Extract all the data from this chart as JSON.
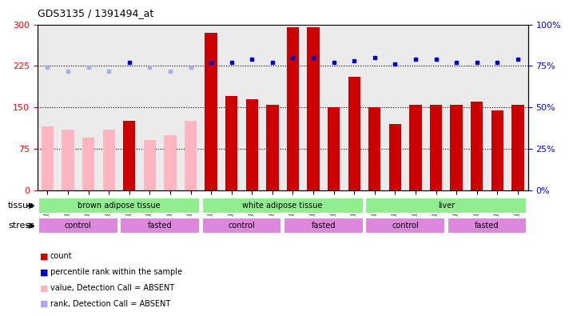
{
  "title": "GDS3135 / 1391494_at",
  "samples": [
    "GSM184414",
    "GSM184415",
    "GSM184416",
    "GSM184417",
    "GSM184418",
    "GSM184419",
    "GSM184420",
    "GSM184421",
    "GSM184422",
    "GSM184423",
    "GSM184424",
    "GSM184425",
    "GSM184426",
    "GSM184427",
    "GSM184428",
    "GSM184429",
    "GSM184430",
    "GSM184431",
    "GSM184432",
    "GSM184433",
    "GSM184434",
    "GSM184435",
    "GSM184436",
    "GSM184437"
  ],
  "counts": [
    115,
    110,
    95,
    110,
    125,
    90,
    100,
    125,
    285,
    170,
    165,
    155,
    295,
    295,
    150,
    205,
    150,
    120,
    155,
    155,
    155,
    160,
    145,
    155
  ],
  "absent_flags": [
    true,
    true,
    true,
    true,
    false,
    true,
    true,
    true,
    false,
    false,
    false,
    false,
    false,
    false,
    false,
    false,
    false,
    false,
    false,
    false,
    false,
    false,
    false,
    false
  ],
  "percentile_ranks": [
    74,
    72,
    74,
    72,
    77,
    74,
    72,
    74,
    77,
    77,
    79,
    77,
    80,
    80,
    77,
    78,
    80,
    76,
    79,
    79,
    77,
    77,
    77,
    79
  ],
  "rank_absent_flags": [
    true,
    true,
    true,
    true,
    false,
    true,
    true,
    true,
    false,
    false,
    false,
    false,
    false,
    false,
    false,
    false,
    false,
    false,
    false,
    false,
    false,
    false,
    false,
    false
  ],
  "tissue_groups": [
    {
      "label": "brown adipose tissue",
      "start": 0,
      "end": 7
    },
    {
      "label": "white adipose tissue",
      "start": 8,
      "end": 15
    },
    {
      "label": "liver",
      "start": 16,
      "end": 23
    }
  ],
  "stress_groups": [
    {
      "label": "control",
      "start": 0,
      "end": 3
    },
    {
      "label": "fasted",
      "start": 4,
      "end": 7
    },
    {
      "label": "control",
      "start": 8,
      "end": 11
    },
    {
      "label": "fasted",
      "start": 12,
      "end": 15
    },
    {
      "label": "control",
      "start": 16,
      "end": 19
    },
    {
      "label": "fasted",
      "start": 20,
      "end": 23
    }
  ],
  "ylim_left": [
    0,
    300
  ],
  "ylim_right": [
    0,
    100
  ],
  "yticks_left": [
    0,
    75,
    150,
    225,
    300
  ],
  "yticks_right": [
    0,
    25,
    50,
    75,
    100
  ],
  "bar_color_present": "#CC0000",
  "bar_color_absent": "#FFB6C1",
  "dot_color_present": "#0000CC",
  "dot_color_absent": "#AAAAEE",
  "tissue_color": "#90EE90",
  "stress_color": "#DD88DD",
  "background_color": "#FFFFFF",
  "plot_bg_color": "#EBEBEB",
  "legend_items": [
    {
      "label": "count",
      "color": "#CC0000"
    },
    {
      "label": "percentile rank within the sample",
      "color": "#0000CC"
    },
    {
      "label": "value, Detection Call = ABSENT",
      "color": "#FFB6C1"
    },
    {
      "label": "rank, Detection Call = ABSENT",
      "color": "#AAAAEE"
    }
  ]
}
